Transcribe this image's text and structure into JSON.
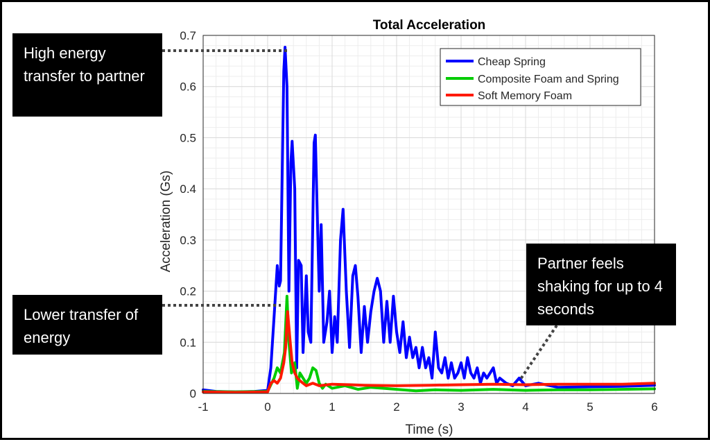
{
  "chart_data": {
    "type": "line",
    "title": "Total Acceleration",
    "xlabel": "Time (s)",
    "ylabel": "Acceleration (Gs)",
    "xlim": [
      -1,
      6
    ],
    "ylim": [
      0,
      0.7
    ],
    "xticks": [
      "-1",
      "0",
      "1",
      "2",
      "3",
      "4",
      "5",
      "6"
    ],
    "yticks": [
      "0",
      "0.1",
      "0.2",
      "0.3",
      "0.4",
      "0.5",
      "0.6",
      "0.7"
    ],
    "grid": true,
    "legend_position": "top-right",
    "series": [
      {
        "name": "Cheap Spring",
        "color": "#0000ff",
        "points": [
          [
            -1.0,
            0.007
          ],
          [
            -0.8,
            0.004
          ],
          [
            -0.5,
            0.003
          ],
          [
            -0.2,
            0.004
          ],
          [
            0.0,
            0.006
          ],
          [
            0.05,
            0.05
          ],
          [
            0.1,
            0.15
          ],
          [
            0.15,
            0.25
          ],
          [
            0.18,
            0.21
          ],
          [
            0.2,
            0.22
          ],
          [
            0.25,
            0.63
          ],
          [
            0.27,
            0.677
          ],
          [
            0.3,
            0.6
          ],
          [
            0.33,
            0.2
          ],
          [
            0.36,
            0.45
          ],
          [
            0.38,
            0.493
          ],
          [
            0.42,
            0.4
          ],
          [
            0.45,
            0.05
          ],
          [
            0.48,
            0.26
          ],
          [
            0.52,
            0.25
          ],
          [
            0.55,
            0.08
          ],
          [
            0.6,
            0.23
          ],
          [
            0.63,
            0.12
          ],
          [
            0.67,
            0.1
          ],
          [
            0.72,
            0.49
          ],
          [
            0.74,
            0.505
          ],
          [
            0.77,
            0.35
          ],
          [
            0.8,
            0.2
          ],
          [
            0.83,
            0.33
          ],
          [
            0.87,
            0.1
          ],
          [
            0.92,
            0.14
          ],
          [
            0.96,
            0.2
          ],
          [
            1.0,
            0.08
          ],
          [
            1.04,
            0.15
          ],
          [
            1.08,
            0.1
          ],
          [
            1.13,
            0.3
          ],
          [
            1.17,
            0.36
          ],
          [
            1.22,
            0.2
          ],
          [
            1.27,
            0.09
          ],
          [
            1.32,
            0.23
          ],
          [
            1.36,
            0.25
          ],
          [
            1.4,
            0.19
          ],
          [
            1.45,
            0.08
          ],
          [
            1.5,
            0.17
          ],
          [
            1.55,
            0.1
          ],
          [
            1.6,
            0.16
          ],
          [
            1.65,
            0.2
          ],
          [
            1.7,
            0.225
          ],
          [
            1.75,
            0.2
          ],
          [
            1.8,
            0.1
          ],
          [
            1.85,
            0.18
          ],
          [
            1.9,
            0.1
          ],
          [
            1.95,
            0.19
          ],
          [
            2.0,
            0.12
          ],
          [
            2.05,
            0.08
          ],
          [
            2.1,
            0.14
          ],
          [
            2.15,
            0.07
          ],
          [
            2.2,
            0.11
          ],
          [
            2.25,
            0.07
          ],
          [
            2.3,
            0.09
          ],
          [
            2.35,
            0.05
          ],
          [
            2.4,
            0.09
          ],
          [
            2.45,
            0.05
          ],
          [
            2.5,
            0.07
          ],
          [
            2.55,
            0.03
          ],
          [
            2.6,
            0.12
          ],
          [
            2.65,
            0.05
          ],
          [
            2.7,
            0.04
          ],
          [
            2.75,
            0.07
          ],
          [
            2.8,
            0.03
          ],
          [
            2.85,
            0.06
          ],
          [
            2.9,
            0.03
          ],
          [
            2.95,
            0.04
          ],
          [
            3.0,
            0.06
          ],
          [
            3.05,
            0.03
          ],
          [
            3.1,
            0.07
          ],
          [
            3.15,
            0.04
          ],
          [
            3.2,
            0.03
          ],
          [
            3.25,
            0.05
          ],
          [
            3.3,
            0.02
          ],
          [
            3.35,
            0.04
          ],
          [
            3.4,
            0.03
          ],
          [
            3.45,
            0.04
          ],
          [
            3.5,
            0.05
          ],
          [
            3.55,
            0.02
          ],
          [
            3.6,
            0.03
          ],
          [
            3.7,
            0.02
          ],
          [
            3.8,
            0.015
          ],
          [
            3.9,
            0.03
          ],
          [
            4.0,
            0.015
          ],
          [
            4.2,
            0.02
          ],
          [
            4.5,
            0.012
          ],
          [
            5.0,
            0.013
          ],
          [
            5.5,
            0.014
          ],
          [
            6.0,
            0.016
          ]
        ]
      },
      {
        "name": "Composite Foam and Spring",
        "color": "#00cc00",
        "points": [
          [
            -1.0,
            0.004
          ],
          [
            -0.5,
            0.003
          ],
          [
            0.0,
            0.004
          ],
          [
            0.1,
            0.03
          ],
          [
            0.15,
            0.05
          ],
          [
            0.2,
            0.04
          ],
          [
            0.23,
            0.06
          ],
          [
            0.26,
            0.08
          ],
          [
            0.3,
            0.19
          ],
          [
            0.33,
            0.1
          ],
          [
            0.37,
            0.04
          ],
          [
            0.42,
            0.06
          ],
          [
            0.46,
            0.01
          ],
          [
            0.5,
            0.04
          ],
          [
            0.55,
            0.03
          ],
          [
            0.6,
            0.02
          ],
          [
            0.65,
            0.03
          ],
          [
            0.7,
            0.05
          ],
          [
            0.75,
            0.045
          ],
          [
            0.8,
            0.02
          ],
          [
            0.85,
            0.01
          ],
          [
            0.9,
            0.018
          ],
          [
            1.0,
            0.01
          ],
          [
            1.2,
            0.015
          ],
          [
            1.4,
            0.008
          ],
          [
            1.6,
            0.012
          ],
          [
            1.8,
            0.01
          ],
          [
            2.0,
            0.008
          ],
          [
            2.3,
            0.005
          ],
          [
            2.6,
            0.007
          ],
          [
            3.0,
            0.006
          ],
          [
            3.5,
            0.008
          ],
          [
            4.0,
            0.006
          ],
          [
            4.5,
            0.007
          ],
          [
            5.0,
            0.007
          ],
          [
            5.5,
            0.008
          ],
          [
            6.0,
            0.009
          ]
        ]
      },
      {
        "name": "Soft Memory Foam",
        "color": "#ff1a00",
        "points": [
          [
            -1.0,
            0.003
          ],
          [
            -0.5,
            0.002
          ],
          [
            0.0,
            0.003
          ],
          [
            0.05,
            0.02
          ],
          [
            0.1,
            0.025
          ],
          [
            0.15,
            0.02
          ],
          [
            0.2,
            0.03
          ],
          [
            0.25,
            0.06
          ],
          [
            0.28,
            0.09
          ],
          [
            0.31,
            0.16
          ],
          [
            0.35,
            0.1
          ],
          [
            0.38,
            0.06
          ],
          [
            0.42,
            0.04
          ],
          [
            0.46,
            0.03
          ],
          [
            0.5,
            0.025
          ],
          [
            0.55,
            0.02
          ],
          [
            0.6,
            0.015
          ],
          [
            0.7,
            0.02
          ],
          [
            0.8,
            0.015
          ],
          [
            1.0,
            0.018
          ],
          [
            1.5,
            0.016
          ],
          [
            2.0,
            0.015
          ],
          [
            2.5,
            0.016
          ],
          [
            3.0,
            0.017
          ],
          [
            3.5,
            0.018
          ],
          [
            4.0,
            0.017
          ],
          [
            4.5,
            0.018
          ],
          [
            5.0,
            0.018
          ],
          [
            5.5,
            0.018
          ],
          [
            6.0,
            0.02
          ]
        ]
      }
    ]
  },
  "callouts": {
    "high_energy": "High energy transfer to partner",
    "lower_transfer": "Lower transfer of energy",
    "partner_shaking": "Partner feels shaking for up to 4 seconds"
  }
}
